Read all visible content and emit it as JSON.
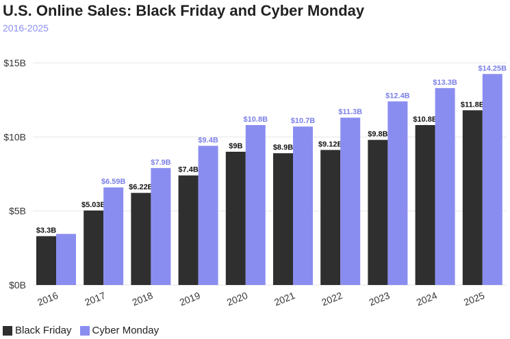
{
  "title": "U.S. Online Sales: Black Friday and Cyber Monday",
  "subtitle": "2016-2025",
  "colors": {
    "black_friday": "#2f2f2f",
    "cyber_monday": "#8a8df0",
    "gridline": "#e6e6e6",
    "axis_text": "#333333",
    "cm_label": "#7b7fe8"
  },
  "chart_data": {
    "type": "bar",
    "title": "U.S. Online Sales: Black Friday and Cyber Monday",
    "subtitle": "2016-2025",
    "xlabel": "",
    "ylabel": "",
    "ylim": [
      0,
      15
    ],
    "y_ticks": [
      0,
      5,
      10,
      15
    ],
    "y_tick_labels": [
      "$0B",
      "$5B",
      "$10B",
      "$15B"
    ],
    "grid": true,
    "legend_position": "bottom-left",
    "categories": [
      "2016",
      "2017",
      "2018",
      "2019",
      "2020",
      "2021",
      "2022",
      "2023",
      "2024",
      "2025"
    ],
    "series": [
      {
        "name": "Black Friday",
        "values": [
          3.3,
          5.03,
          6.22,
          7.4,
          9,
          8.9,
          9.12,
          9.8,
          10.8,
          11.8
        ],
        "labels": [
          "$3.3B",
          "$5.03B",
          "$6.22B",
          "$7.4B",
          "$9B",
          "$8.9B",
          "$9.12B",
          "$9.8B",
          "$10.8B",
          "$11.8B"
        ]
      },
      {
        "name": "Cyber Monday",
        "values": [
          3.45,
          6.59,
          7.9,
          9.4,
          10.8,
          10.7,
          11.3,
          12.4,
          13.3,
          14.25
        ],
        "labels": [
          "",
          "$6.59B",
          "$7.9B",
          "$9.4B",
          "$10.8B",
          "$10.7B",
          "$11.3B",
          "$12.4B",
          "$13.3B",
          "$14.25B"
        ]
      }
    ]
  },
  "legend": {
    "items": [
      "Black Friday",
      "Cyber Monday"
    ]
  }
}
